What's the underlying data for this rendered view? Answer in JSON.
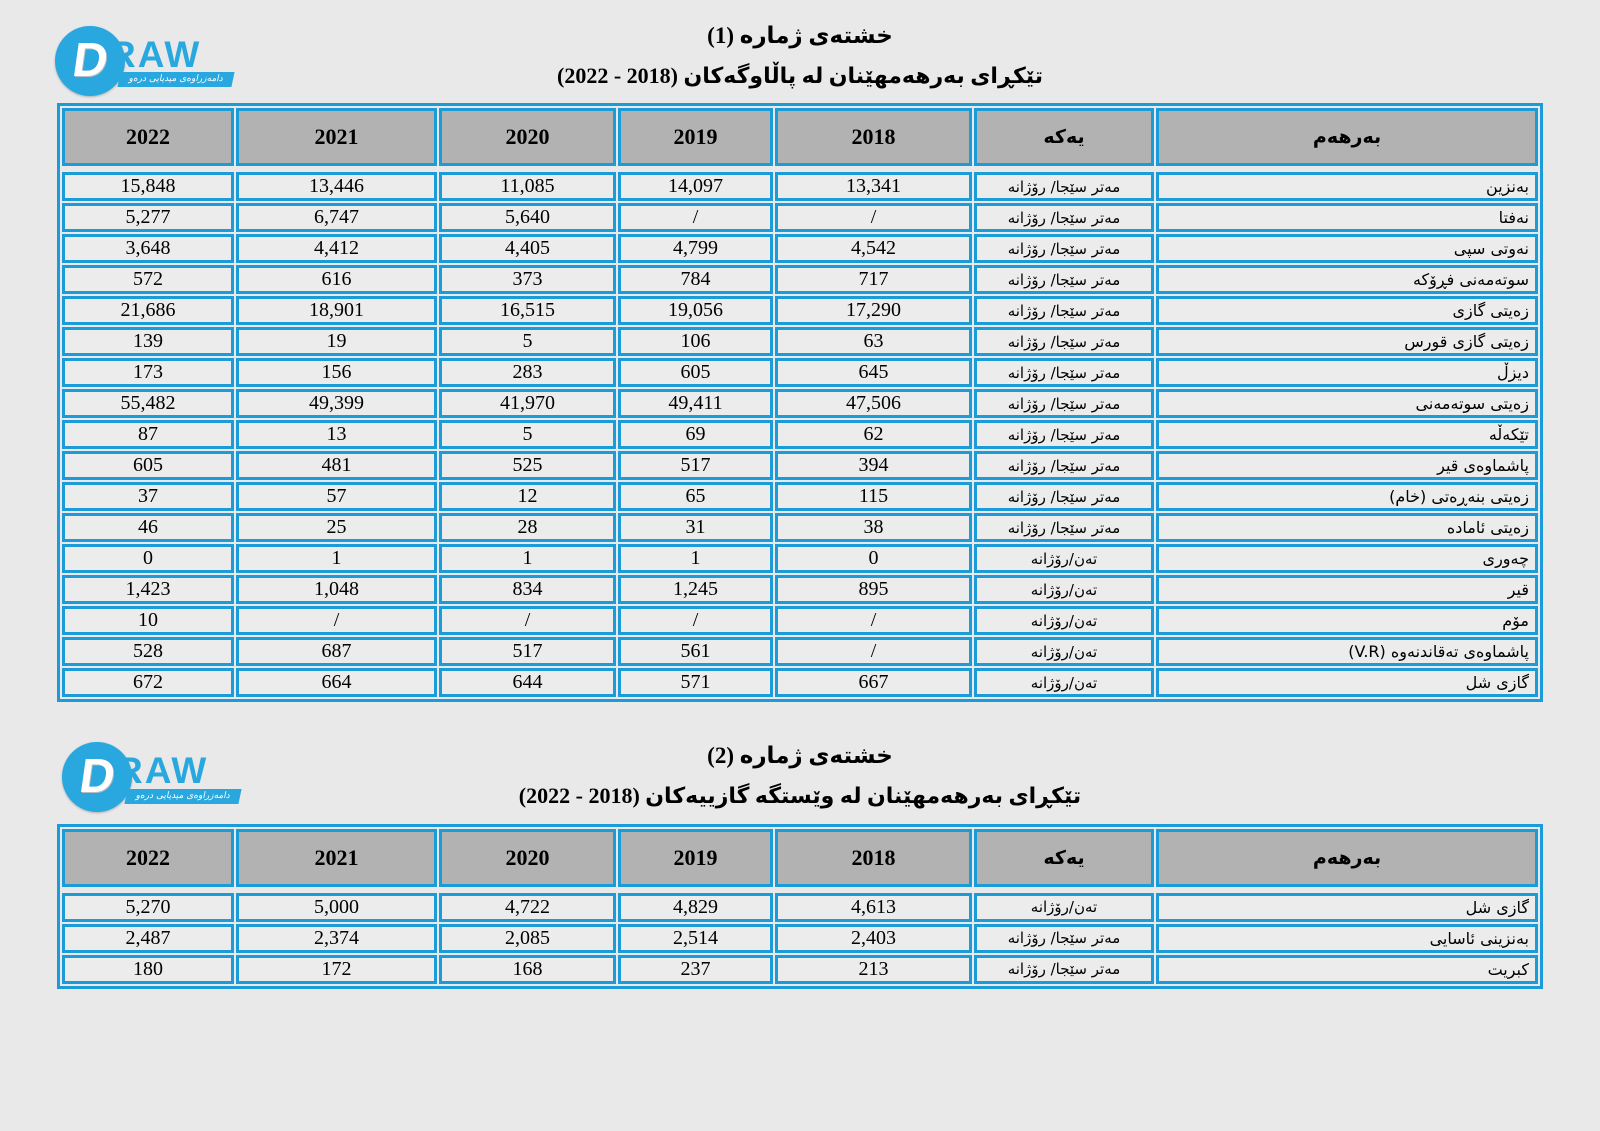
{
  "logo": {
    "d": "D",
    "raw": "RAW",
    "ribbon": "دامەزراوەی میدیایی درەو",
    "blue": "#29a8e0"
  },
  "colors": {
    "page_bg": "#e9e9e9",
    "table_border_blue": "#1b9cd8",
    "header_cell_bg": "#b2b2b2",
    "data_cell_bg": "#ececec",
    "text": "#000000"
  },
  "table1": {
    "title": "خشتەی ژمارە (1)",
    "subtitle": "تێکڕای بەرهەمهێنان لە پاڵاوگەکان (2018 - 2022)",
    "headers": [
      "2022",
      "2021",
      "2020",
      "2019",
      "2018",
      "یەکە",
      "بەرهەم"
    ],
    "rows": [
      [
        "15,848",
        "13,446",
        "11,085",
        "14,097",
        "13,341",
        "مەتر سێجا/ رۆژانە",
        "بەنزین"
      ],
      [
        "5,277",
        "6,747",
        "5,640",
        "/",
        "/",
        "مەتر سێجا/ رۆژانە",
        "نەفتا"
      ],
      [
        "3,648",
        "4,412",
        "4,405",
        "4,799",
        "4,542",
        "مەتر سێجا/ رۆژانە",
        "نەوتی سپی"
      ],
      [
        "572",
        "616",
        "373",
        "784",
        "717",
        "مەتر سێجا/ رۆژانە",
        "سوتەمەنی فڕۆکە"
      ],
      [
        "21,686",
        "18,901",
        "16,515",
        "19,056",
        "17,290",
        "مەتر سێجا/ رۆژانە",
        "زەیتی گازی"
      ],
      [
        "139",
        "19",
        "5",
        "106",
        "63",
        "مەتر سێجا/ رۆژانە",
        "زەیتی گازی قورس"
      ],
      [
        "173",
        "156",
        "283",
        "605",
        "645",
        "مەتر سێجا/ رۆژانە",
        "دیزڵ"
      ],
      [
        "55,482",
        "49,399",
        "41,970",
        "49,411",
        "47,506",
        "مەتر سێجا/ رۆژانە",
        "زەیتی سوتەمەنی"
      ],
      [
        "87",
        "13",
        "5",
        "69",
        "62",
        "مەتر سێجا/ رۆژانە",
        "تێکەڵە"
      ],
      [
        "605",
        "481",
        "525",
        "517",
        "394",
        "مەتر سێجا/ رۆژانە",
        "پاشماوەی قیر"
      ],
      [
        "37",
        "57",
        "12",
        "65",
        "115",
        "مەتر سێجا/ رۆژانە",
        "زەیتی بنەڕەتی (خام)"
      ],
      [
        "46",
        "25",
        "28",
        "31",
        "38",
        "مەتر سێجا/ رۆژانە",
        "زەیتی ئامادە"
      ],
      [
        "0",
        "1",
        "1",
        "1",
        "0",
        "تەن/رۆژانە",
        "چەوری"
      ],
      [
        "1,423",
        "1,048",
        "834",
        "1,245",
        "895",
        "تەن/رۆژانە",
        "قیر"
      ],
      [
        "10",
        "/",
        "/",
        "/",
        "/",
        "تەن/رۆژانە",
        "مۆم"
      ],
      [
        "528",
        "687",
        "517",
        "561",
        "/",
        "تەن/رۆژانە",
        "پاشماوەی تەقاندنەوە (V.R)"
      ],
      [
        "672",
        "664",
        "644",
        "571",
        "667",
        "تەن/رۆژانە",
        "گازی شل"
      ]
    ]
  },
  "table2": {
    "title": "خشتەی ژمارە (2)",
    "subtitle": "تێکڕای بەرهەمهێنان لە وێستگە گازییەکان (2018 - 2022)",
    "headers": [
      "2022",
      "2021",
      "2020",
      "2019",
      "2018",
      "یەکە",
      "بەرهەم"
    ],
    "rows": [
      [
        "5,270",
        "5,000",
        "4,722",
        "4,829",
        "4,613",
        "تەن/رۆژانە",
        "گازی شل"
      ],
      [
        "2,487",
        "2,374",
        "2,085",
        "2,514",
        "2,403",
        "مەتر سێجا/ رۆژانە",
        "بەنزینی ئاسایی"
      ],
      [
        "180",
        "172",
        "168",
        "237",
        "213",
        "مەتر سێجا/ رۆژانە",
        "کبریت"
      ]
    ]
  }
}
